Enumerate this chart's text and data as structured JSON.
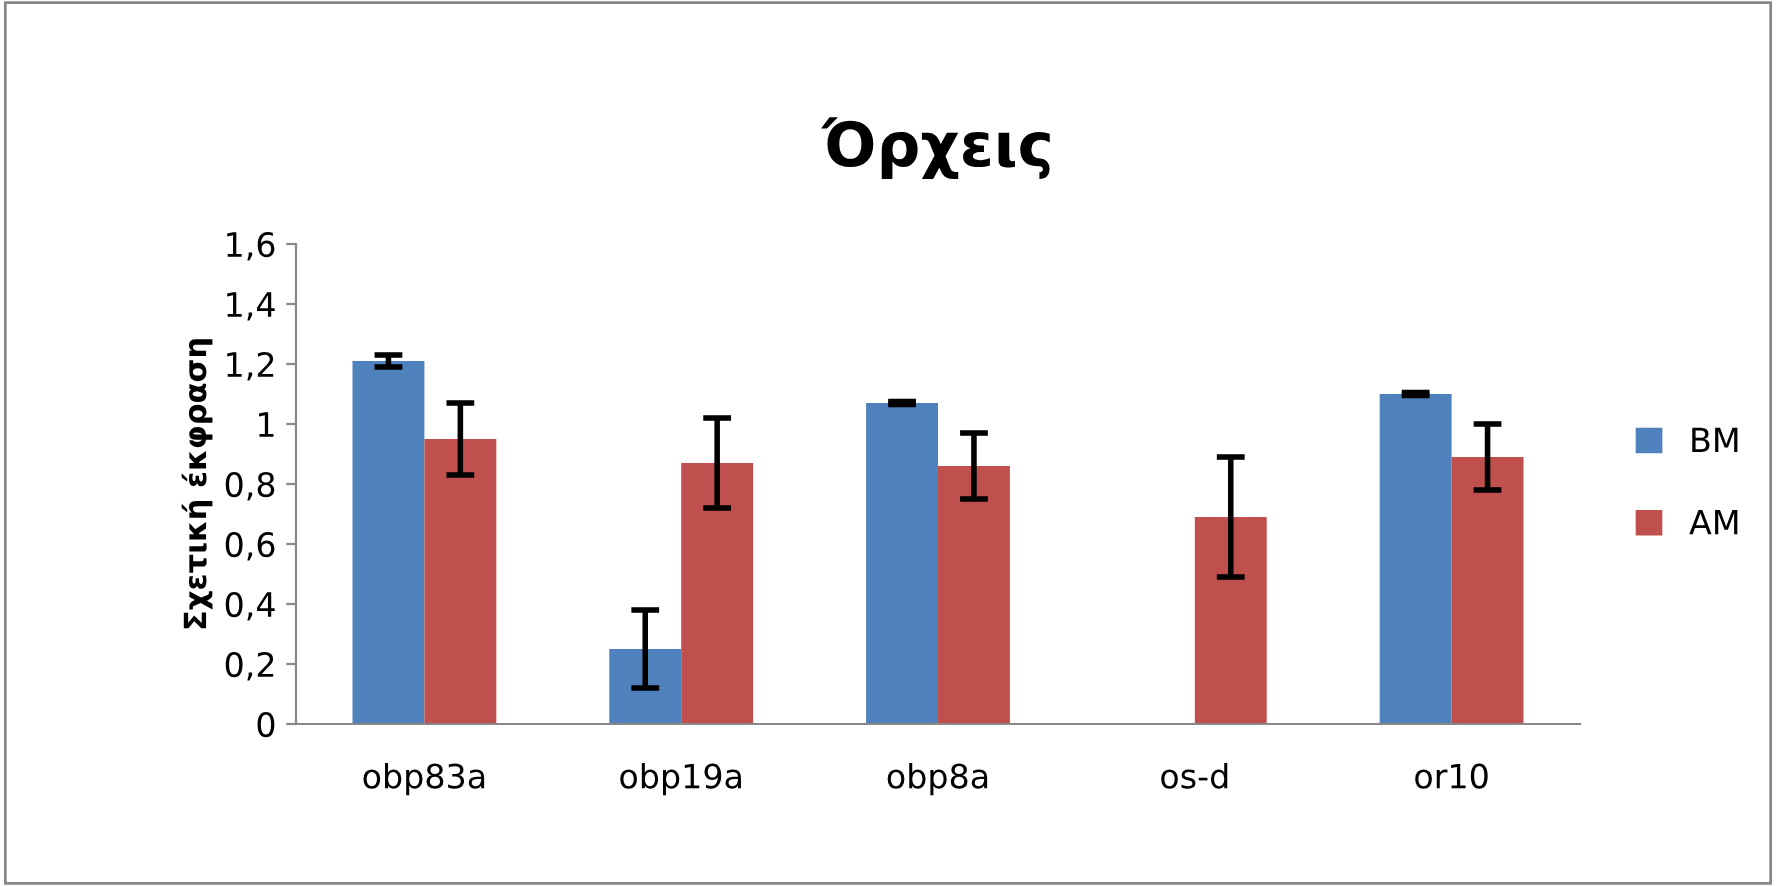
{
  "chart_data": {
    "type": "bar",
    "title": "Όρχεις",
    "ylabel": "Σχετική έκφραση",
    "categories": [
      "obp83a",
      "obp19a",
      "obp8a",
      "os-d",
      "or10"
    ],
    "series": [
      {
        "name": "BM",
        "color": "#4f81bd",
        "values": [
          1.21,
          0.25,
          1.07,
          null,
          1.1
        ],
        "errors": [
          0.02,
          0.13,
          0.005,
          null,
          0.005
        ]
      },
      {
        "name": "AM",
        "color": "#c0504d",
        "values": [
          0.95,
          0.87,
          0.86,
          0.69,
          0.89
        ],
        "errors": [
          0.12,
          0.15,
          0.11,
          0.2,
          0.11
        ]
      }
    ],
    "ylim": [
      0,
      1.6
    ],
    "yticks": [
      0,
      {
        "value": 0.2,
        "label": "0,2"
      },
      {
        "value": 0.4,
        "label": "0,4"
      },
      {
        "value": 0.6,
        "label": "0,6"
      },
      {
        "value": 0.8,
        "label": "0,8"
      },
      1,
      {
        "value": 1.2,
        "label": "1,2"
      },
      {
        "value": 1.4,
        "label": "1,4"
      },
      {
        "value": 1.6,
        "label": "1,6"
      }
    ],
    "legend": "right",
    "grid": false
  }
}
